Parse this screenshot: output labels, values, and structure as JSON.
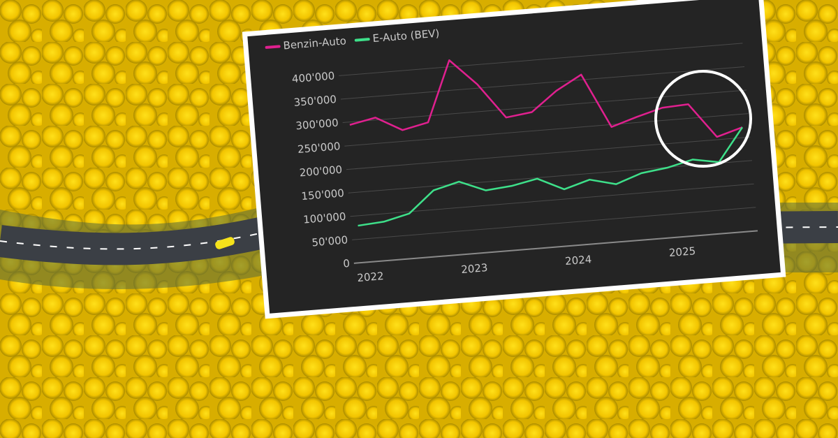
{
  "chart_data": {
    "type": "line",
    "categories": [
      "2022",
      null,
      null,
      null,
      "2023",
      null,
      null,
      null,
      "2024",
      null,
      null,
      null,
      "2025",
      null,
      null,
      null
    ],
    "series": [
      {
        "name": "Benzin-Auto",
        "color": "#e0208f",
        "values": [
          294,
          305,
          274,
          286,
          414,
          358,
          283,
          290,
          331,
          361,
          245,
          262,
          277,
          280,
          206,
          222
        ]
      },
      {
        "name": "E-Auto (BEV)",
        "color": "#3ee08a",
        "values": [
          79,
          83,
          96,
          141,
          155,
          132,
          137,
          148,
          121,
          137,
          123,
          142,
          149,
          162,
          152,
          222
        ]
      }
    ],
    "ylim": [
      0,
      450
    ],
    "yticks": [
      {
        "value": 0,
        "label": "0"
      },
      {
        "value": 50,
        "label": "50'000"
      },
      {
        "value": 100,
        "label": "100'000"
      },
      {
        "value": 150,
        "label": "150'000"
      },
      {
        "value": 200,
        "label": "200'000"
      },
      {
        "value": 250,
        "label": "250'000"
      },
      {
        "value": 300,
        "label": "300'000"
      },
      {
        "value": 350,
        "label": "350'000"
      },
      {
        "value": 400,
        "label": "400'000"
      }
    ],
    "grid": true
  }
}
